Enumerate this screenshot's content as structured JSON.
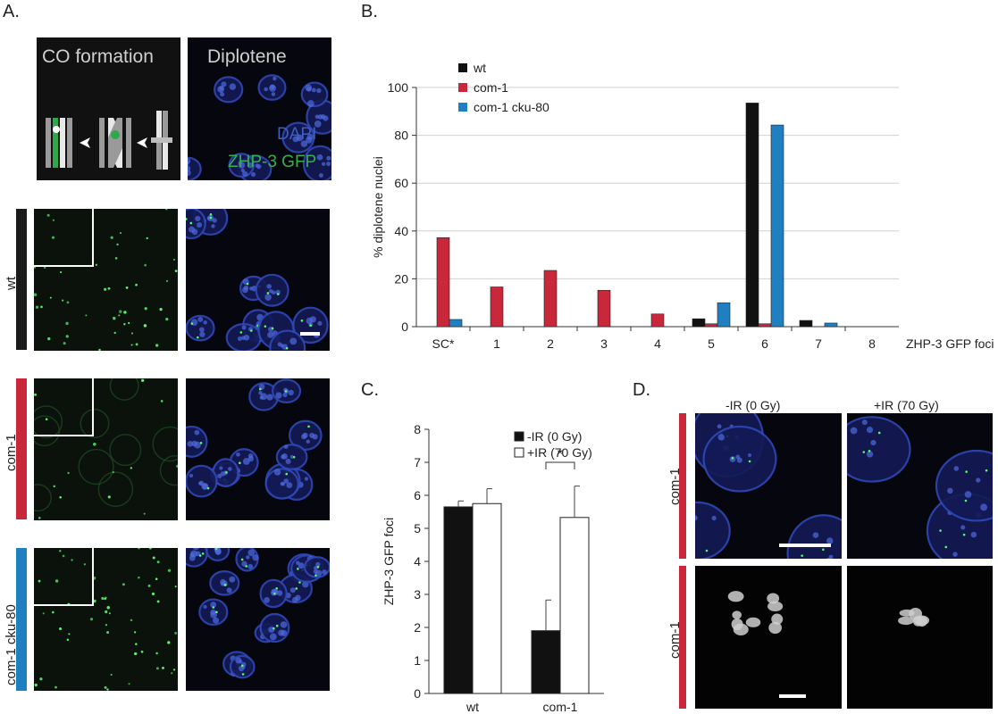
{
  "panels": {
    "a": {
      "label": "A.",
      "schematic_title": "CO formation",
      "diplotene_title": "Diplotene",
      "dapi_label": "DAPI",
      "gfp_label": "ZHP-3 GFP",
      "rows": [
        {
          "label": "wt",
          "color": "#1a1a1a"
        },
        {
          "label": "com-1",
          "color": "#c8283a"
        },
        {
          "label": "com-1  cku-80",
          "color": "#1f7fc1"
        }
      ]
    },
    "b": {
      "label": "B."
    },
    "c": {
      "label": "C."
    },
    "d": {
      "label": "D.",
      "col_labels": [
        "-IR (0 Gy)",
        "+IR (70 Gy)"
      ],
      "row_labels": [
        "com-1",
        "com-1"
      ],
      "row_color": "#c8283a"
    }
  },
  "chart_data": [
    {
      "id": "B",
      "type": "bar",
      "categories": [
        "SC*",
        "1",
        "2",
        "3",
        "4",
        "5",
        "6",
        "7",
        "8"
      ],
      "series": [
        {
          "name": "wt",
          "color": "#111111",
          "values": [
            0,
            0,
            0,
            0,
            0,
            3.3,
            93.5,
            2.6,
            0
          ]
        },
        {
          "name": "com-1",
          "color": "#c8283a",
          "values": [
            37.2,
            16.6,
            23.5,
            15.2,
            5.3,
            1.2,
            1.2,
            0,
            0
          ]
        },
        {
          "name": "com-1 cku-80",
          "color": "#1f7fc1",
          "values": [
            3.0,
            0,
            0,
            0,
            0,
            10.0,
            84.3,
            1.5,
            0
          ]
        }
      ],
      "ylabel": "% diplotene  nuclei",
      "xlabel": "ZHP-3 GFP foci",
      "ylim": [
        0,
        100
      ],
      "yticks": [
        0,
        20,
        40,
        60,
        80,
        100
      ],
      "grid": true,
      "legend": "top-left"
    },
    {
      "id": "C",
      "type": "bar",
      "categories": [
        "wt",
        "com-1"
      ],
      "series": [
        {
          "name": "-IR (0 Gy)",
          "color": "#111111",
          "values": [
            5.65,
            1.9
          ],
          "errors": [
            0.18,
            0.93
          ]
        },
        {
          "name": "+IR (70 Gy)",
          "color": "#ffffff",
          "values": [
            5.75,
            5.33
          ],
          "errors": [
            0.45,
            0.95
          ]
        }
      ],
      "ylabel": "ZHP-3 GFP foci",
      "ylim": [
        0,
        8
      ],
      "yticks": [
        0,
        1,
        2,
        3,
        4,
        5,
        6,
        7,
        8
      ],
      "significance": "*",
      "legend": "top-right"
    }
  ]
}
